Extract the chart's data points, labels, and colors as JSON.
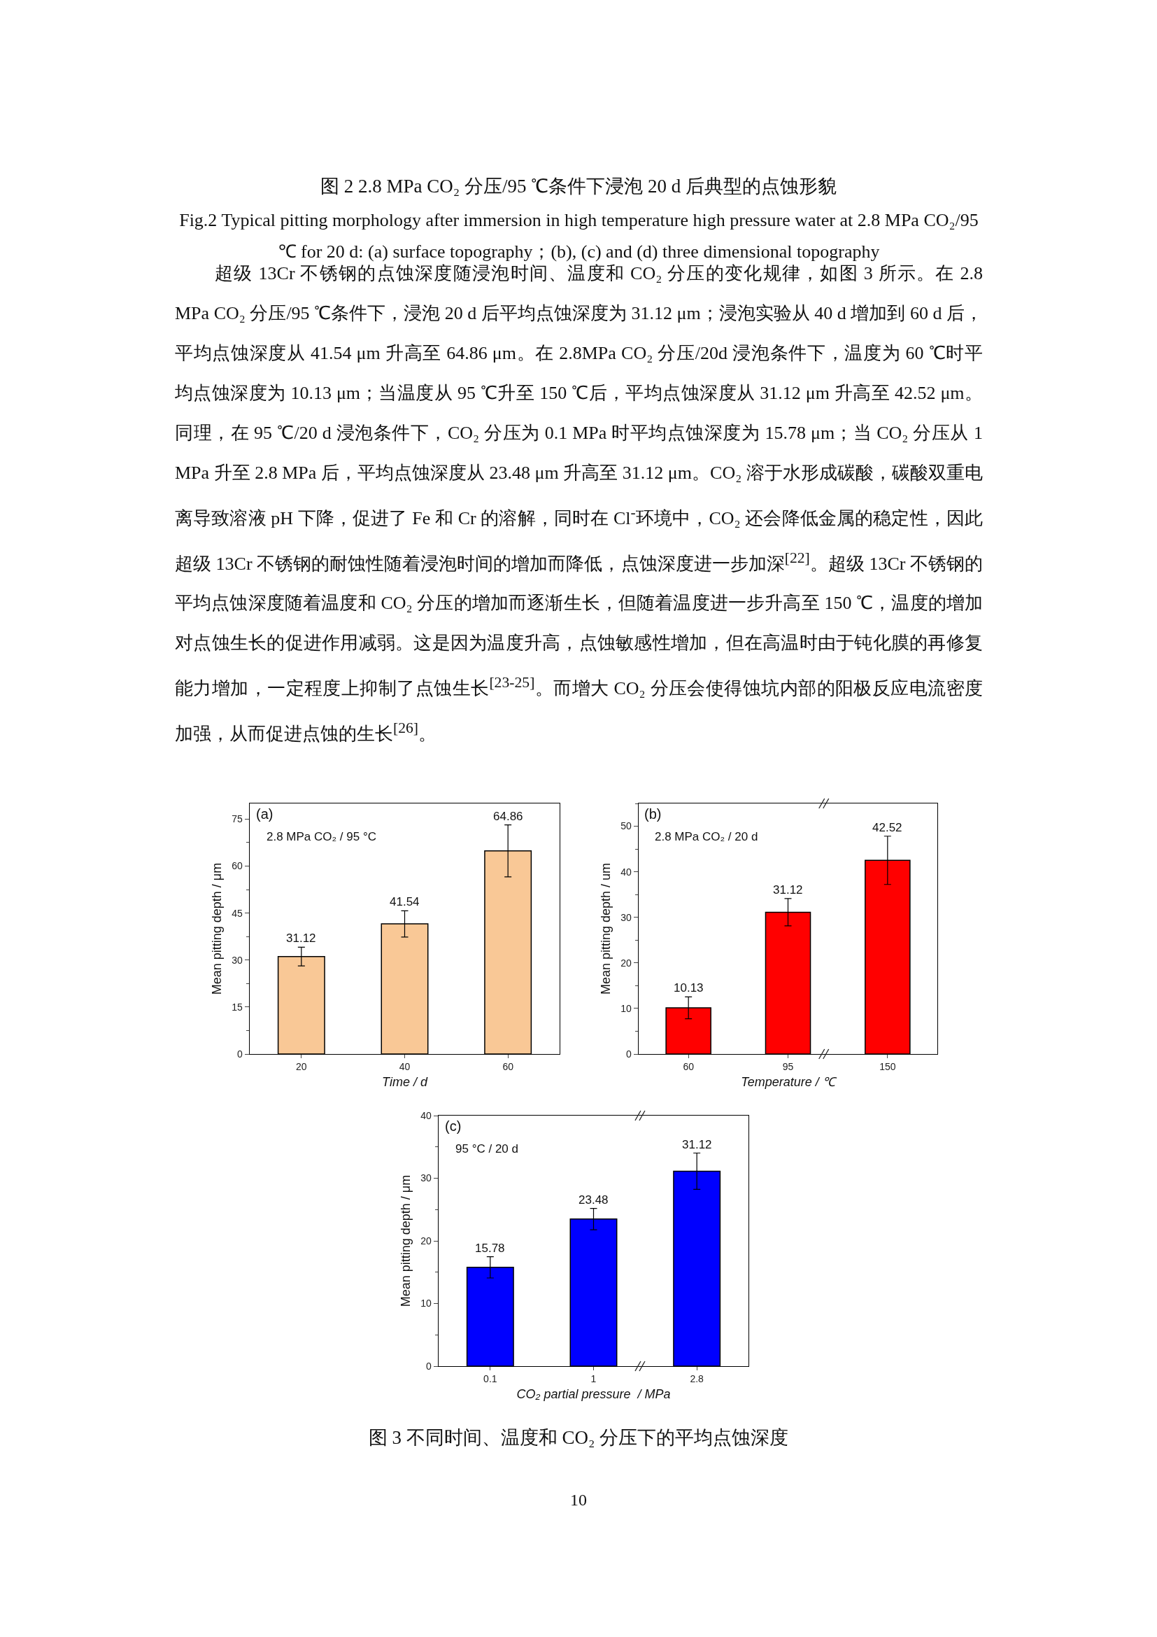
{
  "chart_data": [
    {
      "type": "bar",
      "categories": [
        "20",
        "40",
        "60"
      ],
      "values": [
        31.12,
        41.54,
        64.86
      ],
      "errors": [
        3,
        4.2,
        8.3
      ],
      "color": "#f9c896",
      "xlabel": "Time / d",
      "ylabel": "Mean pitting depth / μm",
      "ylim": [
        0,
        80
      ],
      "yticks": [
        0,
        15,
        30,
        45,
        60,
        75
      ],
      "data_labels": true,
      "annotations": [
        "(a)",
        "2.8 MPa CO₂ / 95 °C",
        "图 2 2.8 MPa CO₂ 分压/95 ℃条件下浸泡 20 d 后典型的点蚀形貌",
        "Fig.2 Typical pitting morphology after immersion in high temperature high pressure water at 2.8 MPa CO₂/95 ℃ for 20 d: (a) surface topography；(b), (c) and (d) three dimensional topography",
        "超级 13Cr 不锈钢的点蚀深度随浸泡时间、温度和 CO₂ 分压的变化规律，如图 3 所示。在 2.8 MPa CO₂ 分压/95 ℃条件下，浸泡 20 d 后平均点蚀深度为 31.12 μm；浸泡实验从 40 d 增加到 60 d 后，平均点蚀深度从 41.54 μm 升高至 64.86 μm。在 2.8MPa CO₂ 分压/20d 浸泡条件下，温度为 60 ℃时平均点蚀深度为 10.13 μm；当温度从 95 ℃升至 150 ℃后，平均点蚀深度从 31.12 μm 升高至 42.52 μm。同理，在 95 ℃/20 d 浸泡条件下，CO₂ 分压为 0.1 MPa 时平均点蚀深度为 15.78 μm；当 CO₂ 分压从 1 MPa 升至 2.8 MPa 后，平均点蚀深度从 23.48 μm 升高至 31.12 μm。CO₂ 溶于水形成碳酸，碳酸双重电离导致溶液 pH 下降，促进了 Fe 和 Cr 的溶解，同时在 Cl$^{-}$环境中，CO₂ 还会降低金属的稳定性，因此超级 13Cr 不锈钢的耐蚀性随着浸泡时间的增加而降低，点蚀深度进一步加深$^{[22]}$。超级 13Cr 不锈钢的平均点蚀深度随着温度和 CO₂ 分压的增加而逐渐生长，但随着温度进一步升高至 150 ℃，温度的增加对点蚀生长的促进作用减弱。这是因为温度升高，点蚀敏感性增加，但在高温时由于钝化膜的再修复能力增加，一定程度上抑制了点蚀生长$^{[23-25]}$。而增大 CO₂ 分压会使得蚀坑内部的阳极反应电流密度加强，从而促进点蚀的生长$^{[26]}$。"
      ]
    },
    {
      "type": "bar",
      "categories": [
        "60",
        "95",
        "150"
      ],
      "values": [
        10.13,
        31.12,
        42.52
      ],
      "errors": [
        2.4,
        3,
        5.3
      ],
      "color": "#ff0000",
      "xlabel": "Temperature / ℃",
      "ylabel": "Mean pitting depth / um",
      "ylim": [
        0,
        55
      ],
      "yticks": [
        0,
        10,
        20,
        30,
        40,
        50
      ],
      "data_labels": true,
      "annotations": [
        "(b)",
        "2.8 MPa CO₂ / 20 d"
      ]
    },
    {
      "type": "bar",
      "categories": [
        "0.1",
        "1",
        "2.8"
      ],
      "values": [
        15.78,
        23.48,
        31.12
      ],
      "errors": [
        1.7,
        1.7,
        2.9
      ],
      "color": "#0000ff",
      "xlabel": "CO₂ partial pressure  / MPa",
      "ylabel": "Mean pitting depth / μm",
      "ylim": [
        0,
        40
      ],
      "yticks": [
        0,
        10,
        20,
        30,
        40
      ],
      "data_labels": true,
      "annotations": [
        "(c)",
        "95 °C / 20 d",
        "图 3 不同时间、温度和 CO₂ 分压下的平均点蚀深度",
        "10"
      ]
    }
  ]
}
